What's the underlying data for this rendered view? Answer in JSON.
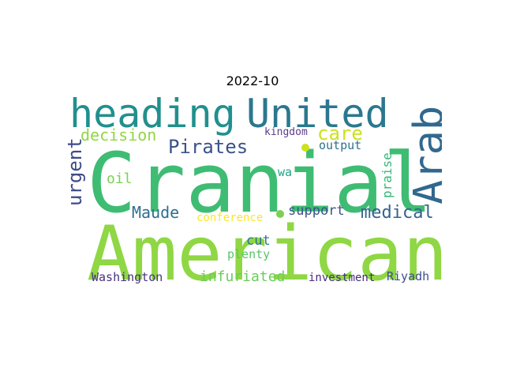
{
  "title": "2022-10",
  "words": [
    {
      "text": "American",
      "color": "#8fd744"
    },
    {
      "text": "Cranial",
      "color": "#3fbc73"
    },
    {
      "text": "heading",
      "color": "#21908d"
    },
    {
      "text": "United",
      "color": "#2a788e"
    },
    {
      "text": "Arab",
      "color": "#31688e"
    },
    {
      "text": "Pirates",
      "color": "#3b528b"
    },
    {
      "text": "care",
      "color": "#cde11d"
    },
    {
      "text": "decision",
      "color": "#90d743"
    },
    {
      "text": "urgent",
      "color": "#3e4a89"
    },
    {
      "text": "output",
      "color": "#2c728e"
    },
    {
      "text": "kingdom",
      "color": "#5b3a8b"
    },
    {
      "text": "oil",
      "color": "#7ad151"
    },
    {
      "text": "wa",
      "color": "#20a386"
    },
    {
      "text": "praise",
      "color": "#35b779"
    },
    {
      "text": "Maude",
      "color": "#2e6f8e"
    },
    {
      "text": "support",
      "color": "#3b528b"
    },
    {
      "text": "medical",
      "color": "#33638d"
    },
    {
      "text": "conference",
      "color": "#fde725"
    },
    {
      "text": "cut",
      "color": "#2a778e"
    },
    {
      "text": "plenty",
      "color": "#56c667"
    },
    {
      "text": "Washington",
      "color": "#46337e"
    },
    {
      "text": "infuriated",
      "color": "#6ccd5a"
    },
    {
      "text": "investment",
      "color": "#472d7b"
    },
    {
      "text": "Riyadh",
      "color": "#3d4d8a"
    }
  ],
  "dots": [
    {
      "color": "#cde11d"
    },
    {
      "color": "#7ad151"
    }
  ]
}
